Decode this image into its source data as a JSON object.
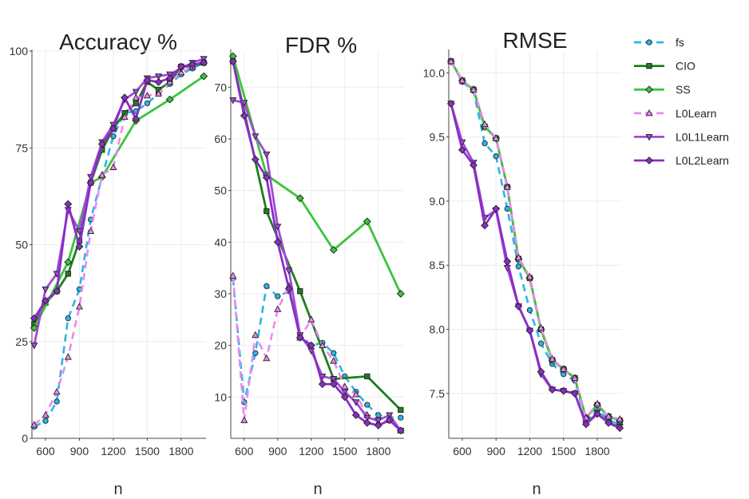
{
  "chart_data": [
    {
      "type": "line",
      "title": "Accuracy %",
      "xlabel": "n",
      "ylabel": "",
      "xlim": [
        480,
        2020
      ],
      "ylim": [
        0,
        100
      ],
      "xticks": [
        600,
        900,
        1200,
        1500,
        1800
      ],
      "yticks": [
        0,
        25,
        50,
        75,
        100
      ],
      "x": [
        500,
        600,
        700,
        800,
        900,
        1000,
        1100,
        1200,
        1300,
        1400,
        1500,
        1600,
        1700,
        1800,
        1900,
        2000
      ],
      "series": [
        {
          "name": "fs",
          "values": [
            3,
            4.5,
            9.5,
            31,
            38.5,
            56.5,
            67.5,
            78,
            84,
            84.5,
            86.5,
            89,
            91.5,
            94,
            95.5,
            97
          ]
        },
        {
          "name": "CIO",
          "values": [
            29.5,
            35,
            38,
            42.5,
            51,
            66,
            74.5,
            80,
            84,
            86.5,
            92,
            90,
            92,
            96,
            96,
            97
          ]
        },
        {
          "name": "SS",
          "points": [
            [
              500,
              28.5
            ],
            [
              800,
              45.5
            ],
            [
              1000,
              66
            ],
            [
              1100,
              67.5
            ],
            [
              1400,
              82
            ],
            [
              1700,
              87.5
            ],
            [
              2000,
              93.5
            ]
          ]
        },
        {
          "name": "L0Learn",
          "values": [
            3.5,
            6,
            12,
            21,
            34,
            53.5,
            68,
            70,
            83,
            88,
            88.5,
            89,
            92,
            94.5,
            96,
            97.5
          ]
        },
        {
          "name": "L0L1Learn",
          "values": [
            24,
            38.5,
            42.5,
            59,
            53.5,
            67.5,
            76.5,
            81,
            87.5,
            89.5,
            93,
            93.5,
            94,
            95.5,
            97,
            98
          ]
        },
        {
          "name": "L0L2Learn",
          "values": [
            31,
            35.5,
            38,
            60.5,
            49.5,
            66,
            76,
            80,
            88,
            82.5,
            92.5,
            92,
            93,
            96,
            96.5,
            97
          ]
        }
      ]
    },
    {
      "type": "line",
      "title": "FDR %",
      "xlabel": "n",
      "ylabel": "",
      "xlim": [
        480,
        2030
      ],
      "ylim": [
        2,
        77
      ],
      "xticks": [
        600,
        900,
        1200,
        1500,
        1800
      ],
      "yticks": [
        10,
        20,
        30,
        40,
        50,
        60,
        70
      ],
      "x": [
        500,
        600,
        700,
        800,
        900,
        1000,
        1100,
        1200,
        1300,
        1400,
        1500,
        1600,
        1700,
        1800,
        1900,
        2000
      ],
      "series": [
        {
          "name": "fs",
          "values": [
            33,
            9,
            18.5,
            31.5,
            29.5,
            30.5,
            22,
            20,
            20.5,
            18.5,
            14,
            11,
            8.5,
            6.5,
            6,
            6
          ]
        },
        {
          "name": "CIO",
          "points": [
            [
              500,
              75
            ],
            [
              800,
              46
            ],
            [
              1100,
              30.5
            ],
            [
              1400,
              13.5
            ],
            [
              1700,
              14
            ],
            [
              2000,
              7.5
            ]
          ]
        },
        {
          "name": "SS",
          "points": [
            [
              500,
              76
            ],
            [
              800,
              53
            ],
            [
              1100,
              48.5
            ],
            [
              1400,
              38.5
            ],
            [
              1700,
              44
            ],
            [
              2000,
              30
            ]
          ]
        },
        {
          "name": "L0Learn",
          "values": [
            33.5,
            5.5,
            22,
            17.5,
            27,
            31.5,
            21.5,
            25,
            20,
            17,
            12,
            10.5,
            6.5,
            5,
            5.5,
            3.5
          ]
        },
        {
          "name": "L0L1Learn",
          "values": [
            67.5,
            67,
            60.5,
            57,
            43,
            34.5,
            22,
            19,
            14,
            13.5,
            11,
            9,
            6,
            5.5,
            6.5,
            3.5
          ]
        },
        {
          "name": "L0L2Learn",
          "values": [
            75,
            64.5,
            56,
            52.5,
            40,
            31,
            21.5,
            20,
            12.5,
            12.5,
            10,
            6.5,
            5,
            4.5,
            5.5,
            3.5
          ]
        }
      ]
    },
    {
      "type": "line",
      "title": "RMSE",
      "xlabel": "n",
      "ylabel": "",
      "xlim": [
        480,
        2020
      ],
      "ylim": [
        7.15,
        10.17
      ],
      "xticks": [
        600,
        900,
        1200,
        1500,
        1800
      ],
      "yticks": [
        7.5,
        8.0,
        8.5,
        9.0,
        9.5,
        10.0
      ],
      "x": [
        500,
        600,
        700,
        800,
        900,
        1000,
        1100,
        1200,
        1300,
        1400,
        1500,
        1600,
        1700,
        1800,
        1900,
        2000
      ],
      "series": [
        {
          "name": "fs",
          "values": [
            10.09,
            9.93,
            9.86,
            9.45,
            9.35,
            8.94,
            8.49,
            8.15,
            7.89,
            7.73,
            7.65,
            7.6,
            7.28,
            7.38,
            7.29,
            7.26
          ]
        },
        {
          "name": "CIO",
          "values": [
            10.09,
            9.94,
            9.87,
            9.58,
            9.49,
            9.11,
            8.55,
            8.4,
            8.0,
            7.76,
            7.69,
            7.62,
            7.31,
            7.41,
            7.32,
            7.29
          ]
        },
        {
          "name": "SS",
          "values": [
            10.09,
            9.94,
            9.87,
            9.58,
            9.49,
            9.11,
            8.55,
            8.4,
            8.0,
            7.76,
            7.69,
            7.62,
            7.31,
            7.41,
            7.32,
            7.29
          ]
        },
        {
          "name": "L0Learn",
          "values": [
            10.09,
            9.94,
            9.87,
            9.6,
            9.49,
            9.11,
            8.56,
            8.41,
            8.01,
            7.77,
            7.69,
            7.62,
            7.31,
            7.42,
            7.32,
            7.3
          ]
        },
        {
          "name": "L0L1Learn",
          "values": [
            9.76,
            9.46,
            9.3,
            8.87,
            8.93,
            8.48,
            8.18,
            7.99,
            7.65,
            7.53,
            7.52,
            7.5,
            7.26,
            7.35,
            7.27,
            7.24
          ]
        },
        {
          "name": "L0L2Learn",
          "values": [
            9.76,
            9.4,
            9.28,
            8.81,
            8.94,
            8.53,
            8.18,
            7.99,
            7.67,
            7.53,
            7.52,
            7.5,
            7.26,
            7.34,
            7.27,
            7.23
          ]
        }
      ]
    }
  ],
  "legend": {
    "placement": "right",
    "entries": [
      {
        "name": "fs",
        "color": "#2db4e6",
        "dash": "dashed",
        "marker": "circle"
      },
      {
        "name": "CIO",
        "color": "#1f7d1f",
        "dash": "solid",
        "marker": "square"
      },
      {
        "name": "SS",
        "color": "#3cc43c",
        "dash": "solid",
        "marker": "diamond"
      },
      {
        "name": "L0Learn",
        "color": "#ee88ee",
        "dash": "dashed",
        "marker": "triangle-up"
      },
      {
        "name": "L0L1Learn",
        "color": "#a24ad8",
        "dash": "solid",
        "marker": "triangle-down"
      },
      {
        "name": "L0L2Learn",
        "color": "#8a2ec4",
        "dash": "solid",
        "marker": "diamond"
      }
    ]
  }
}
